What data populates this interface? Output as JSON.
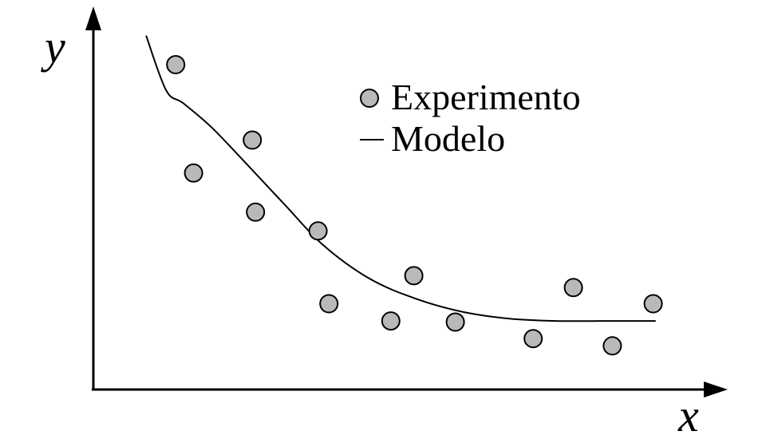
{
  "chart_data": {
    "type": "scatter",
    "title": "",
    "xlabel": "x",
    "ylabel": "y",
    "xlim": [
      0,
      100
    ],
    "ylim": [
      0,
      100
    ],
    "grid": false,
    "legend_position": "top-right",
    "series": [
      {
        "name": "Experimento",
        "type": "scatter",
        "color": "#b9b9b9",
        "points": [
          {
            "x": 12.9,
            "y": 84.8
          },
          {
            "x": 15.7,
            "y": 56.5
          },
          {
            "x": 24.9,
            "y": 65.1
          },
          {
            "x": 25.4,
            "y": 46.3
          },
          {
            "x": 35.2,
            "y": 41.4
          },
          {
            "x": 36.9,
            "y": 22.4
          },
          {
            "x": 46.6,
            "y": 17.9
          },
          {
            "x": 50.2,
            "y": 29.7
          },
          {
            "x": 56.7,
            "y": 17.6
          },
          {
            "x": 68.9,
            "y": 13.3
          },
          {
            "x": 75.2,
            "y": 26.6
          },
          {
            "x": 81.3,
            "y": 11.4
          },
          {
            "x": 87.7,
            "y": 22.4
          }
        ]
      },
      {
        "name": "Modelo",
        "type": "line",
        "color": "#000000",
        "points": [
          {
            "x": 8.3,
            "y": 92.2
          },
          {
            "x": 11.4,
            "y": 78.1
          },
          {
            "x": 14.1,
            "y": 74.7
          },
          {
            "x": 18.6,
            "y": 68.3
          },
          {
            "x": 24.1,
            "y": 58.7
          },
          {
            "x": 30.0,
            "y": 48.2
          },
          {
            "x": 36.0,
            "y": 37.7
          },
          {
            "x": 43.2,
            "y": 29.0
          },
          {
            "x": 50.5,
            "y": 23.7
          },
          {
            "x": 57.8,
            "y": 20.3
          },
          {
            "x": 65.2,
            "y": 18.5
          },
          {
            "x": 72.5,
            "y": 17.9
          },
          {
            "x": 79.8,
            "y": 17.9
          },
          {
            "x": 88.0,
            "y": 17.9
          }
        ]
      }
    ]
  },
  "legend": {
    "items": [
      {
        "label": "Experimento",
        "marker": "circle"
      },
      {
        "label": "Modelo",
        "marker": "line"
      }
    ]
  }
}
